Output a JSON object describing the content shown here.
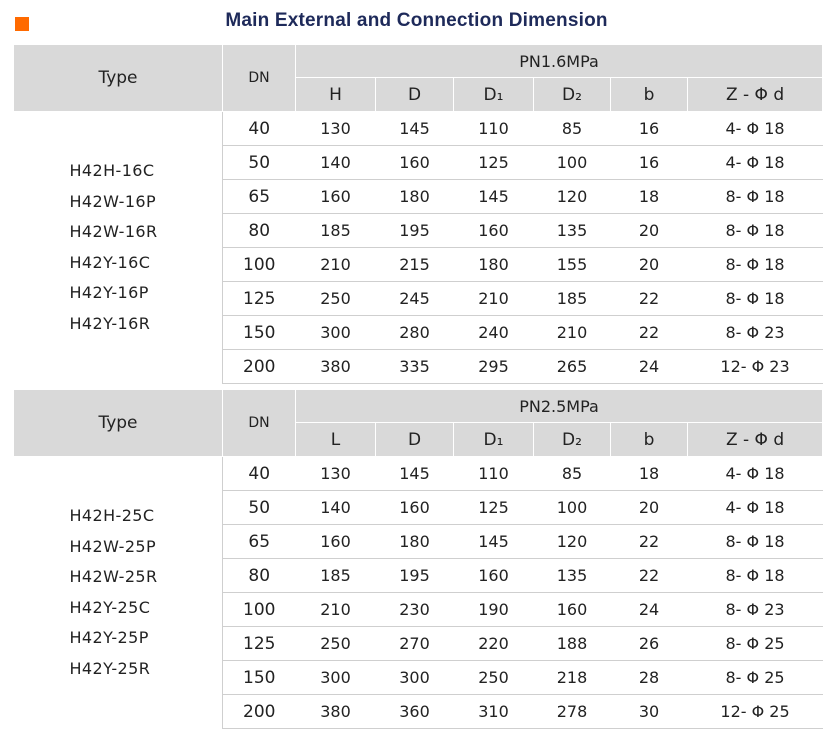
{
  "page": {
    "title": "Main External and Connection Dimension"
  },
  "table1": {
    "type_label": "Type",
    "dn_label": "DN",
    "pressure": "PN1.6MPa",
    "columns": [
      "H",
      "D",
      "D₁",
      "D₂",
      "b",
      "Z - Φ d"
    ],
    "models": [
      "H42H-16C",
      "H42W-16P",
      "H42W-16R",
      "H42Y-16C",
      "H42Y-16P",
      "H42Y-16R"
    ],
    "rows": [
      [
        "40",
        "130",
        "145",
        "110",
        "85",
        "16",
        "4- Φ 18"
      ],
      [
        "50",
        "140",
        "160",
        "125",
        "100",
        "16",
        "4- Φ 18"
      ],
      [
        "65",
        "160",
        "180",
        "145",
        "120",
        "18",
        "8- Φ 18"
      ],
      [
        "80",
        "185",
        "195",
        "160",
        "135",
        "20",
        "8- Φ 18"
      ],
      [
        "100",
        "210",
        "215",
        "180",
        "155",
        "20",
        "8- Φ 18"
      ],
      [
        "125",
        "250",
        "245",
        "210",
        "185",
        "22",
        "8- Φ 18"
      ],
      [
        "150",
        "300",
        "280",
        "240",
        "210",
        "22",
        "8- Φ 23"
      ],
      [
        "200",
        "380",
        "335",
        "295",
        "265",
        "24",
        "12- Φ 23"
      ]
    ]
  },
  "table2": {
    "type_label": "Type",
    "dn_label": "DN",
    "pressure": "PN2.5MPa",
    "columns": [
      "L",
      "D",
      "D₁",
      "D₂",
      "b",
      "Z - Φ d"
    ],
    "models": [
      "H42H-25C",
      "H42W-25P",
      "H42W-25R",
      "H42Y-25C",
      "H42Y-25P",
      "H42Y-25R"
    ],
    "rows": [
      [
        "40",
        "130",
        "145",
        "110",
        "85",
        "18",
        "4- Φ 18"
      ],
      [
        "50",
        "140",
        "160",
        "125",
        "100",
        "20",
        "4- Φ 18"
      ],
      [
        "65",
        "160",
        "180",
        "145",
        "120",
        "22",
        "8- Φ 18"
      ],
      [
        "80",
        "185",
        "195",
        "160",
        "135",
        "22",
        "8- Φ 18"
      ],
      [
        "100",
        "210",
        "230",
        "190",
        "160",
        "24",
        "8- Φ 23"
      ],
      [
        "125",
        "250",
        "270",
        "220",
        "188",
        "26",
        "8- Φ 25"
      ],
      [
        "150",
        "300",
        "300",
        "250",
        "218",
        "28",
        "8- Φ 25"
      ],
      [
        "200",
        "380",
        "360",
        "310",
        "278",
        "30",
        "12- Φ 25"
      ]
    ]
  }
}
